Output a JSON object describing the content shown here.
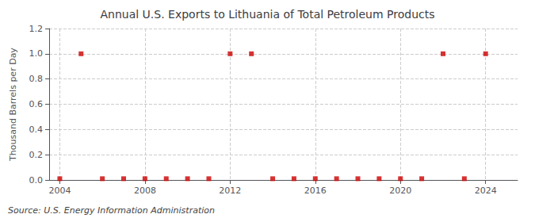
{
  "chart_data": {
    "type": "scatter",
    "title": "Annual U.S. Exports to Lithuania of Total Petroleum Products",
    "ylabel": "Thousand Barrels per Day",
    "annotations": [
      "Source: U.S. Energy Information Administration"
    ],
    "x": [
      2004,
      2005,
      2006,
      2007,
      2008,
      2009,
      2010,
      2011,
      2012,
      2013,
      2014,
      2015,
      2016,
      2017,
      2018,
      2019,
      2020,
      2021,
      2022,
      2023,
      2024
    ],
    "values": [
      0.01,
      1.0,
      0.01,
      0.01,
      0.01,
      0.01,
      0.01,
      0.01,
      1.0,
      1.0,
      0.01,
      0.01,
      0.01,
      0.01,
      0.01,
      0.01,
      0.01,
      0.01,
      1.0,
      0.01,
      1.0
    ],
    "color": "#cc0000",
    "marker": "square",
    "xlim": [
      2003.5,
      2025.5
    ],
    "xticks": [
      2004,
      2008,
      2012,
      2016,
      2020,
      2024
    ],
    "ylim": [
      0.0,
      1.2
    ],
    "yticks": [
      {
        "value": 0.0,
        "label": "0.0"
      },
      0.2,
      0.4,
      0.6,
      0.8,
      {
        "value": 1.0,
        "label": "1.0"
      },
      1.2
    ],
    "grid": true
  }
}
